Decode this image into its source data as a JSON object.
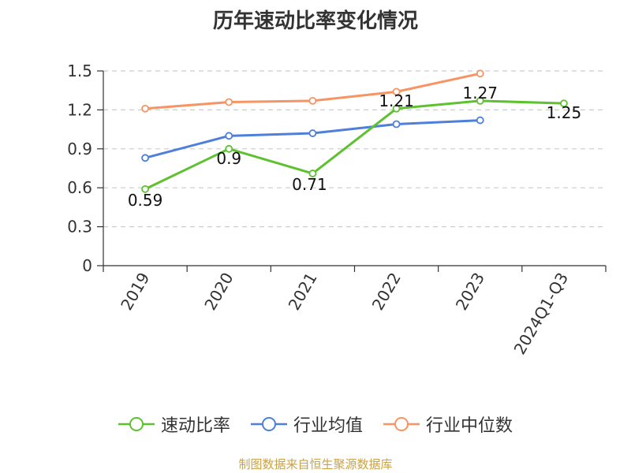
{
  "chart_data": {
    "type": "line",
    "title": "历年速动比率变化情况",
    "categories": [
      "2019",
      "2020",
      "2021",
      "2022",
      "2023",
      "2024Q1-Q3"
    ],
    "ylim": [
      0,
      1.5
    ],
    "yticks": [
      "0",
      "0.3",
      "0.6",
      "0.9",
      "1.2",
      "1.5"
    ],
    "grid": true,
    "legend_position": "bottom",
    "series": [
      {
        "name": "速动比率",
        "color": "#5ec130",
        "values": [
          0.59,
          0.9,
          0.71,
          1.21,
          1.27,
          1.25
        ],
        "labels": [
          "0.59",
          "0.9",
          "0.71",
          "1.21",
          "1.27",
          "1.25"
        ]
      },
      {
        "name": "行业均值",
        "color": "#4e7fd9",
        "values": [
          0.83,
          1.0,
          1.02,
          1.09,
          1.12,
          null
        ]
      },
      {
        "name": "行业中位数",
        "color": "#f79463",
        "values": [
          1.21,
          1.26,
          1.27,
          1.34,
          1.48,
          null
        ]
      }
    ]
  },
  "source_note": "制图数据来自恒生聚源数据库"
}
